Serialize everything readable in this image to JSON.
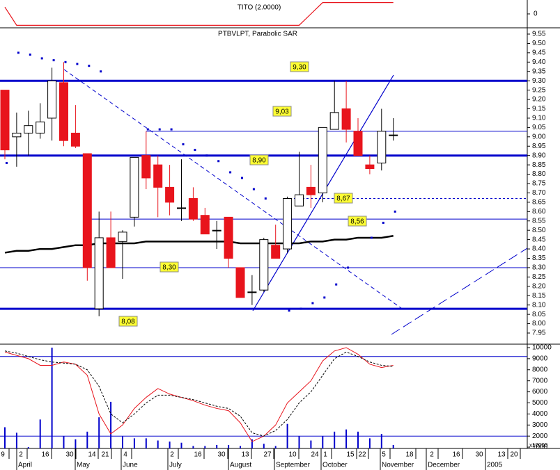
{
  "top_panel": {
    "label": "TITO (2.0000)",
    "ylim": [
      -1.1,
      1.1
    ],
    "yticks": [
      0
    ],
    "color": "#e8141c",
    "values": [
      0.6,
      -1,
      -1,
      -1,
      -1,
      -1,
      -1,
      -1,
      -1,
      -1,
      -1,
      -1,
      -1,
      -1,
      -1,
      -1,
      -1,
      -1,
      -1,
      -1,
      -1,
      -1,
      -1,
      -1,
      -1,
      -1,
      0,
      1,
      1,
      1,
      1,
      1,
      1,
      1
    ]
  },
  "chart_data": {
    "type": "candlestick",
    "title": "PTBVLPT, Parabolic SAR",
    "ylim": [
      7.95,
      9.55
    ],
    "yticks": [
      {
        "value": 9.55,
        "label": "9.55"
      },
      {
        "value": 9.5,
        "label": "9.50"
      },
      {
        "value": 9.45,
        "label": "9.45"
      },
      {
        "value": 9.4,
        "label": "9.40"
      },
      {
        "value": 9.35,
        "label": "9.35"
      },
      {
        "value": 9.3,
        "label": "9.30"
      },
      {
        "value": 9.25,
        "label": "9.25"
      },
      {
        "value": 9.2,
        "label": "9.20"
      },
      {
        "value": 9.15,
        "label": "9.15"
      },
      {
        "value": 9.1,
        "label": "9.10"
      },
      {
        "value": 9.05,
        "label": "9.05"
      },
      {
        "value": 9.0,
        "label": "9.00"
      },
      {
        "value": 8.95,
        "label": "8.95"
      },
      {
        "value": 8.9,
        "label": "8.90"
      },
      {
        "value": 8.85,
        "label": "8.85"
      },
      {
        "value": 8.8,
        "label": "8.80"
      },
      {
        "value": 8.75,
        "label": "8.75"
      },
      {
        "value": 8.7,
        "label": "8.70"
      },
      {
        "value": 8.65,
        "label": "8.65"
      },
      {
        "value": 8.6,
        "label": "8.60"
      },
      {
        "value": 8.55,
        "label": "8.55"
      },
      {
        "value": 8.5,
        "label": "8.50"
      },
      {
        "value": 8.45,
        "label": "8.45"
      },
      {
        "value": 8.4,
        "label": "8.40"
      },
      {
        "value": 8.35,
        "label": "8.35"
      },
      {
        "value": 8.3,
        "label": "8.30"
      },
      {
        "value": 8.25,
        "label": "8.25"
      },
      {
        "value": 8.2,
        "label": "8.20"
      },
      {
        "value": 8.15,
        "label": "8.15"
      },
      {
        "value": 8.1,
        "label": "8.10"
      },
      {
        "value": 8.05,
        "label": "8.05"
      },
      {
        "value": 8.0,
        "label": "8.00"
      },
      {
        "value": 7.95,
        "label": "7.95"
      }
    ],
    "up_color": "#ffffff",
    "down_color": "#e8141c",
    "open": [
      9.25,
      9.0,
      9.02,
      9.02,
      9.1,
      9.29,
      9.02,
      8.91,
      8.08,
      8.46,
      8.44,
      8.57,
      8.9,
      8.85,
      8.73,
      8.62,
      8.67,
      8.58,
      8.5,
      8.57,
      8.3,
      8.17,
      8.18,
      8.42,
      8.4,
      8.63,
      8.73,
      8.7,
      9.04,
      9.15,
      9.03,
      8.85,
      8.86,
      9.01
    ],
    "high": [
      9.25,
      9.13,
      9.14,
      9.18,
      9.37,
      9.4,
      9.17,
      8.91,
      8.6,
      8.6,
      8.5,
      8.89,
      9.03,
      8.9,
      8.85,
      8.88,
      8.73,
      8.62,
      8.55,
      8.57,
      8.3,
      8.26,
      8.46,
      8.53,
      8.68,
      8.92,
      8.85,
      9.05,
      9.3,
      9.3,
      9.1,
      8.9,
      9.15,
      9.1
    ],
    "low": [
      8.88,
      8.84,
      8.9,
      8.99,
      8.98,
      8.95,
      8.94,
      8.23,
      8.04,
      8.3,
      8.24,
      8.52,
      8.72,
      8.57,
      8.58,
      8.55,
      8.55,
      8.48,
      8.4,
      8.3,
      8.14,
      8.1,
      8.17,
      8.35,
      8.38,
      8.63,
      8.62,
      8.65,
      9.04,
      8.97,
      8.9,
      8.8,
      8.82,
      8.98
    ],
    "close": [
      8.93,
      9.02,
      9.06,
      9.08,
      9.3,
      8.98,
      8.95,
      8.3,
      8.46,
      8.3,
      8.49,
      8.89,
      8.78,
      8.73,
      8.65,
      8.62,
      8.56,
      8.48,
      8.5,
      8.35,
      8.14,
      8.17,
      8.45,
      8.35,
      8.67,
      8.69,
      8.69,
      9.05,
      9.13,
      9.04,
      8.9,
      8.83,
      9.03,
      9.01
    ],
    "sar": {
      "color": "#0000cc",
      "values": [
        8.86,
        9.45,
        9.44,
        9.42,
        9.41,
        9.4,
        9.39,
        9.38,
        9.35,
        null,
        null,
        null,
        9.04,
        9.04,
        9.04,
        8.96,
        8.93,
        8.9,
        8.87,
        8.81,
        8.78,
        8.72,
        8.67,
        null,
        8.07,
        8.08,
        8.11,
        8.14,
        8.21,
        8.3,
        null,
        8.46,
        8.54,
        8.6
      ]
    },
    "moving_average": {
      "color": "#000000",
      "values": [
        8.38,
        8.39,
        8.39,
        8.4,
        8.4,
        8.41,
        8.42,
        8.42,
        8.43,
        8.43,
        8.43,
        8.43,
        8.44,
        8.44,
        8.44,
        8.44,
        8.44,
        8.44,
        8.44,
        8.44,
        8.43,
        8.43,
        8.43,
        8.43,
        8.43,
        8.43,
        8.44,
        8.44,
        8.45,
        8.45,
        8.46,
        8.46,
        8.46,
        8.47
      ]
    },
    "levels": [
      {
        "value": 9.3,
        "label": "9,30",
        "style": "thick"
      },
      {
        "value": 9.03,
        "label": "9,03",
        "style": "thin"
      },
      {
        "value": 8.9,
        "label": "8,90",
        "style": "thick"
      },
      {
        "value": 8.67,
        "label": "8,67",
        "style": "dotted"
      },
      {
        "value": 8.56,
        "label": "8,56",
        "style": "thin"
      },
      {
        "value": 8.3,
        "label": "8,30",
        "style": "thin"
      },
      {
        "value": 8.08,
        "label": "8,08",
        "style": "thick"
      }
    ],
    "level_color": "#0000cc"
  },
  "oscillator": {
    "ylim": [
      0,
      10000
    ],
    "yticks": [
      10000,
      9000,
      8000,
      7000,
      6000,
      5000,
      4000,
      3000,
      2000,
      1000
    ],
    "unit_label": "x10000",
    "levels": [
      9200,
      2000
    ],
    "level_color": "#0000cc",
    "k": {
      "color": "#e8141c",
      "values": [
        9600,
        9300,
        9000,
        8400,
        8400,
        8700,
        8500,
        7500,
        4000,
        2200,
        3000,
        4500,
        5500,
        6300,
        5800,
        5500,
        5200,
        4800,
        4500,
        4300,
        3200,
        1500,
        2000,
        3000,
        5000,
        6000,
        7000,
        8800,
        9700,
        10000,
        9400,
        8500,
        8200,
        8400
      ]
    },
    "d": {
      "color": "#000000",
      "values": [
        9700,
        9500,
        9200,
        8900,
        8700,
        8600,
        8500,
        8000,
        6500,
        4000,
        3200,
        4000,
        5000,
        5700,
        5700,
        5500,
        5300,
        5000,
        4700,
        4500,
        3800,
        2300,
        2000,
        2500,
        3500,
        5000,
        6000,
        7500,
        9000,
        9600,
        9200,
        8700,
        8400,
        8300
      ]
    },
    "volume": {
      "color": "#0000cc",
      "values": [
        2800,
        2300,
        1000,
        3500,
        10000,
        2000,
        1700,
        2400,
        3700,
        5100,
        2000,
        1800,
        1800,
        1600,
        1500,
        1400,
        1100,
        1100,
        1200,
        1200,
        1100,
        1700,
        1300,
        1100,
        3100,
        2000,
        1600,
        2000,
        2400,
        2600,
        2400,
        1800,
        2200,
        1200
      ]
    }
  },
  "x_axis": {
    "days": [
      "9",
      "2",
      "16",
      "30",
      "14",
      "21",
      "4",
      "2",
      "16",
      "30",
      "13",
      "27",
      "10",
      "24",
      "1",
      "15",
      "22",
      "5",
      "18",
      "2",
      "16",
      "30",
      "13",
      "20"
    ],
    "months": [
      "April",
      "May",
      "June",
      "July",
      "August",
      "September",
      "October",
      "November",
      "December",
      "2005"
    ]
  }
}
